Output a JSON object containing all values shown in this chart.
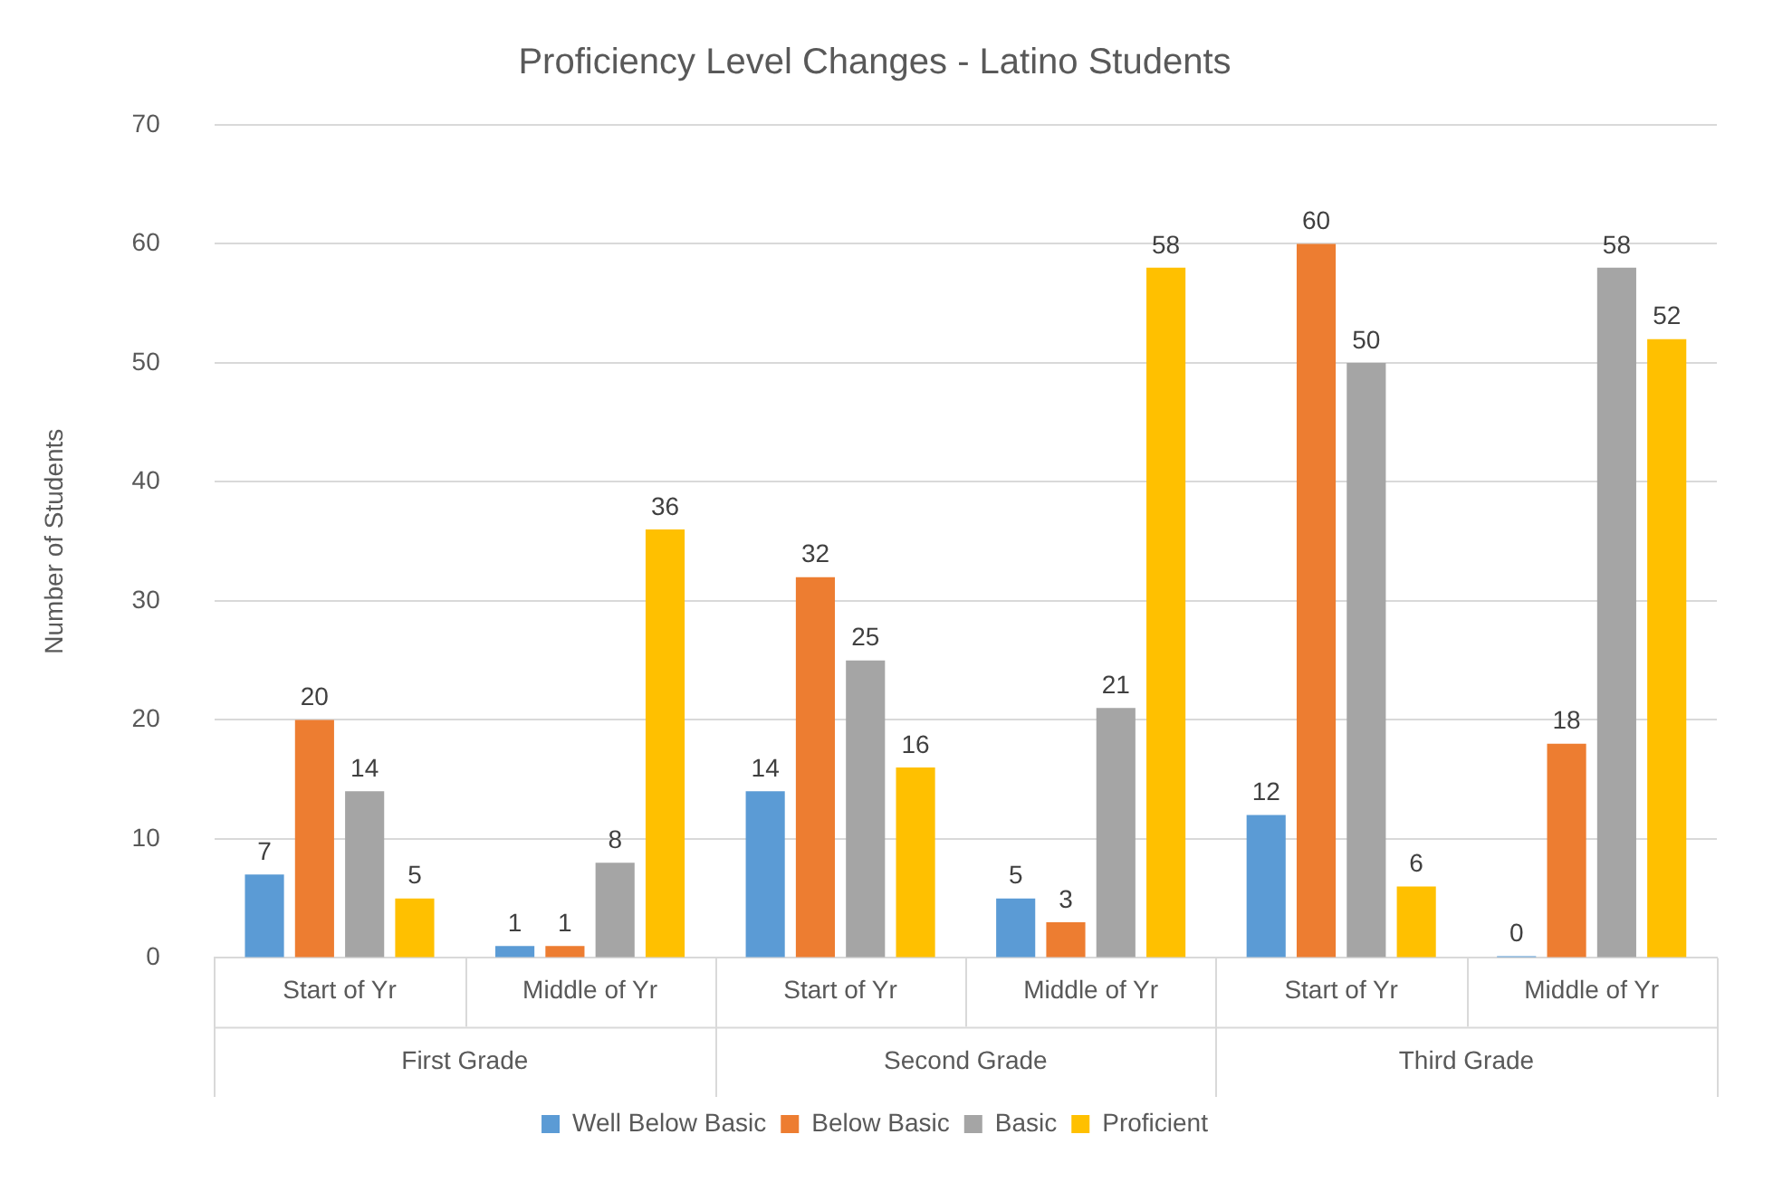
{
  "chart_data": {
    "type": "bar",
    "title": "Proficiency Level Changes - Latino Students",
    "ylabel": "Number of Students",
    "categories": [
      "Start of Yr",
      "Middle of Yr",
      "Start of Yr",
      "Middle of Yr",
      "Start of Yr",
      "Middle of Yr"
    ],
    "annotations": [
      "First Grade",
      "Second Grade",
      "Third Grade"
    ],
    "series": [
      {
        "name": "Well Below Basic",
        "color": "#5b9bd5",
        "values": [
          7,
          1,
          14,
          5,
          12,
          0
        ]
      },
      {
        "name": "Below Basic",
        "color": "#ed7d31",
        "values": [
          20,
          1,
          32,
          3,
          60,
          18
        ]
      },
      {
        "name": "Basic",
        "color": "#a5a5a5",
        "values": [
          14,
          8,
          25,
          21,
          50,
          58
        ]
      },
      {
        "name": "Proficient",
        "color": "#ffc000",
        "values": [
          5,
          36,
          16,
          58,
          6,
          52
        ]
      }
    ],
    "ylim": [
      0,
      70
    ],
    "yticks": [
      0,
      10,
      20,
      30,
      40,
      50,
      60,
      70
    ],
    "grid": "y",
    "legend": "bottom",
    "data_labels": true
  }
}
